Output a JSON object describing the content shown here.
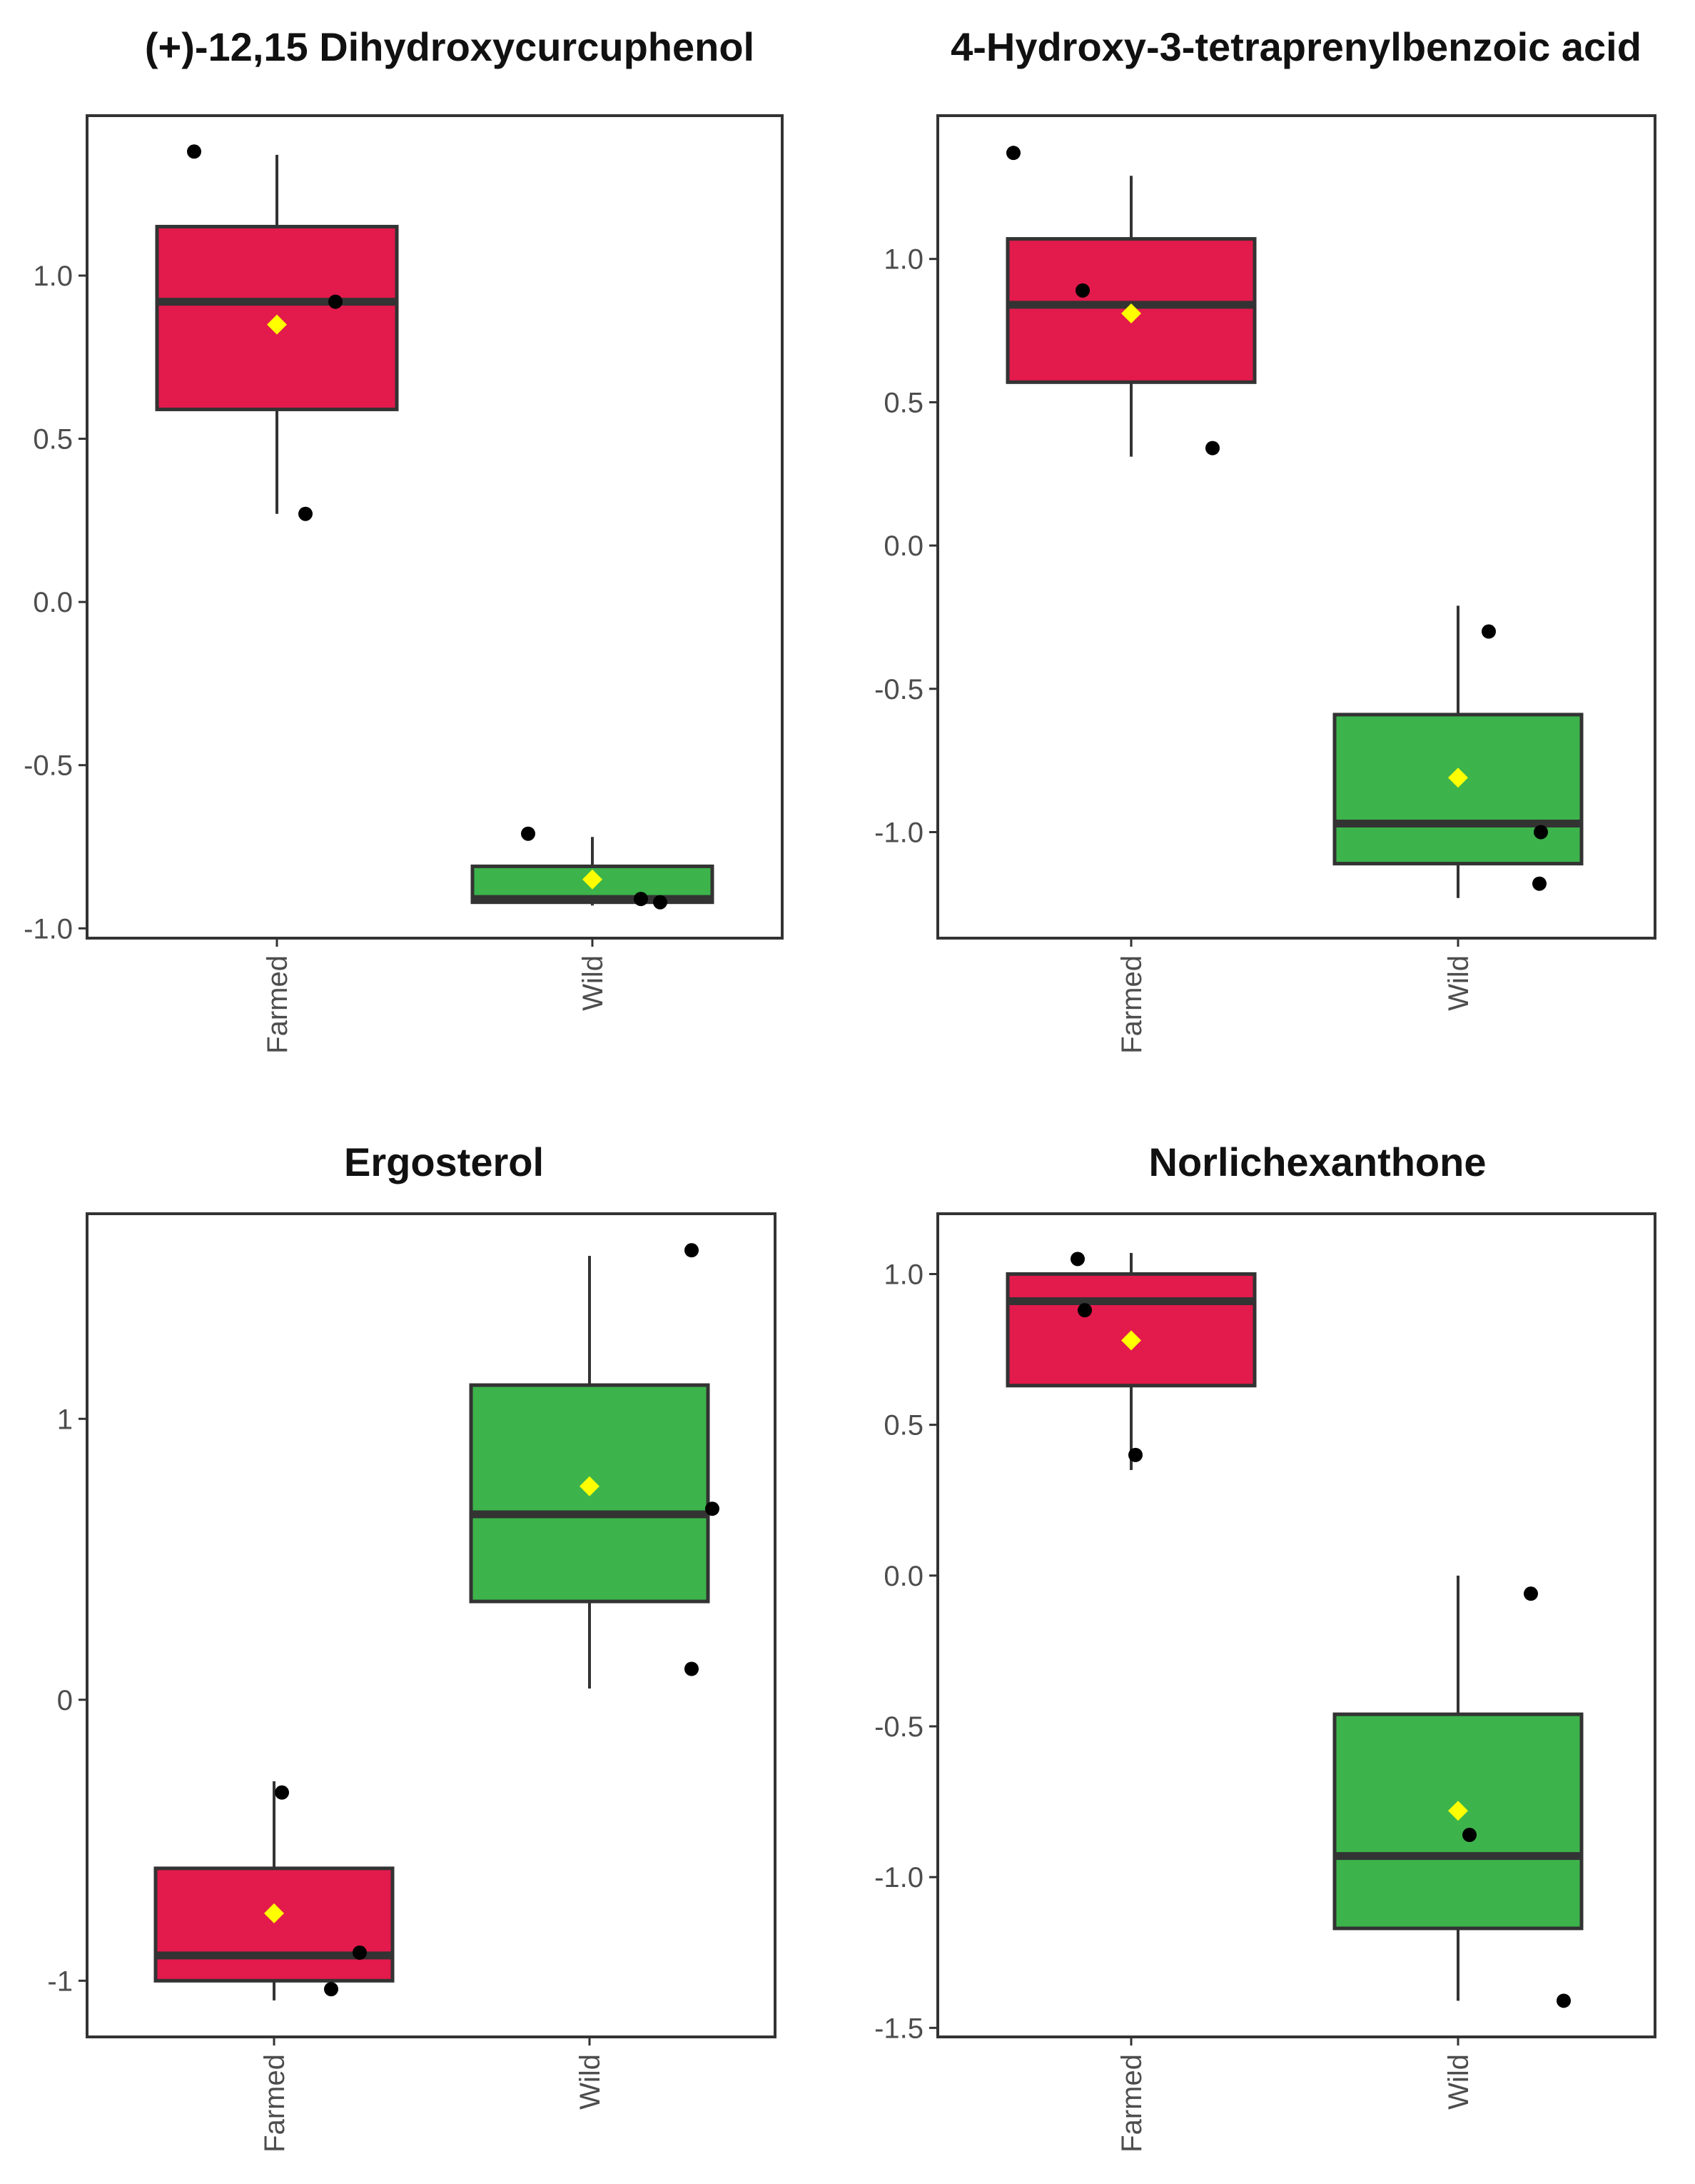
{
  "chart_data": [
    {
      "type": "box",
      "title": "(+)-12,15 Dihydroxycurcuphenol",
      "categories": [
        "Farmed",
        "Wild"
      ],
      "ylim": [
        -1.03,
        1.49
      ],
      "yticks": [
        1.0,
        0.5,
        0.0,
        -0.5,
        -1.0
      ],
      "ytick_labels": [
        "1.0",
        "0.5",
        "0.0",
        "-0.5",
        "-1.0"
      ],
      "boxes": [
        {
          "name": "Farmed",
          "color": "#e31a4c",
          "whisker_high": 1.37,
          "q3": 1.15,
          "median": 0.92,
          "q1": 0.59,
          "whisker_low": 0.27,
          "mean": 0.85,
          "points": [
            1.38,
            0.92,
            0.27
          ]
        },
        {
          "name": "Wild",
          "color": "#3cb44b",
          "whisker_high": -0.72,
          "q3": -0.81,
          "median": -0.91,
          "q1": -0.92,
          "whisker_low": -0.93,
          "mean": -0.85,
          "points": [
            -0.71,
            -0.91,
            -0.92
          ]
        }
      ]
    },
    {
      "type": "box",
      "title": "4-Hydroxy-3-tetraprenylbenzoic acid",
      "categories": [
        "Farmed",
        "Wild"
      ],
      "ylim": [
        -1.37,
        1.5
      ],
      "yticks": [
        1.0,
        0.5,
        0.0,
        -0.5,
        -1.0
      ],
      "ytick_labels": [
        "1.0",
        "0.5",
        "0.0",
        "-0.5",
        "-1.0"
      ],
      "boxes": [
        {
          "name": "Farmed",
          "color": "#e31a4c",
          "whisker_high": 1.29,
          "q3": 1.07,
          "median": 0.84,
          "q1": 0.57,
          "whisker_low": 0.31,
          "mean": 0.81,
          "points": [
            1.37,
            0.89,
            0.34
          ]
        },
        {
          "name": "Wild",
          "color": "#3cb44b",
          "whisker_high": -0.21,
          "q3": -0.59,
          "median": -0.97,
          "q1": -1.11,
          "whisker_low": -1.23,
          "mean": -0.81,
          "points": [
            -0.3,
            -1.0,
            -1.18
          ]
        }
      ]
    },
    {
      "type": "box",
      "title": "Ergosterol",
      "categories": [
        "Farmed",
        "Wild"
      ],
      "ylim": [
        -1.2,
        1.73
      ],
      "yticks": [
        1,
        0,
        -1
      ],
      "ytick_labels": [
        "1",
        "0",
        "-1"
      ],
      "boxes": [
        {
          "name": "Farmed",
          "color": "#e31a4c",
          "whisker_high": -0.29,
          "q3": -0.6,
          "median": -0.91,
          "q1": -1.0,
          "whisker_low": -1.07,
          "mean": -0.76,
          "points": [
            -0.33,
            -0.9,
            -1.03
          ]
        },
        {
          "name": "Wild",
          "color": "#3cb44b",
          "whisker_high": 1.58,
          "q3": 1.12,
          "median": 0.66,
          "q1": 0.35,
          "whisker_low": 0.04,
          "mean": 0.76,
          "points": [
            1.6,
            0.68,
            0.11
          ]
        }
      ]
    },
    {
      "type": "box",
      "title": "Norlichexanthone",
      "categories": [
        "Farmed",
        "Wild"
      ],
      "ylim": [
        -1.53,
        1.2
      ],
      "yticks": [
        1.0,
        0.5,
        0.0,
        -0.5,
        -1.0,
        -1.5
      ],
      "ytick_labels": [
        "1.0",
        "0.5",
        "0.0",
        "-0.5",
        "-1.0",
        "-1.5"
      ],
      "boxes": [
        {
          "name": "Farmed",
          "color": "#e31a4c",
          "whisker_high": 1.07,
          "q3": 1.0,
          "median": 0.91,
          "q1": 0.63,
          "whisker_low": 0.35,
          "mean": 0.78,
          "points": [
            1.05,
            0.88,
            0.4
          ]
        },
        {
          "name": "Wild",
          "color": "#3cb44b",
          "whisker_high": 0.0,
          "q3": -0.46,
          "median": -0.93,
          "q1": -1.17,
          "whisker_low": -1.41,
          "mean": -0.78,
          "points": [
            -0.06,
            -0.86,
            -1.41
          ]
        }
      ]
    }
  ]
}
